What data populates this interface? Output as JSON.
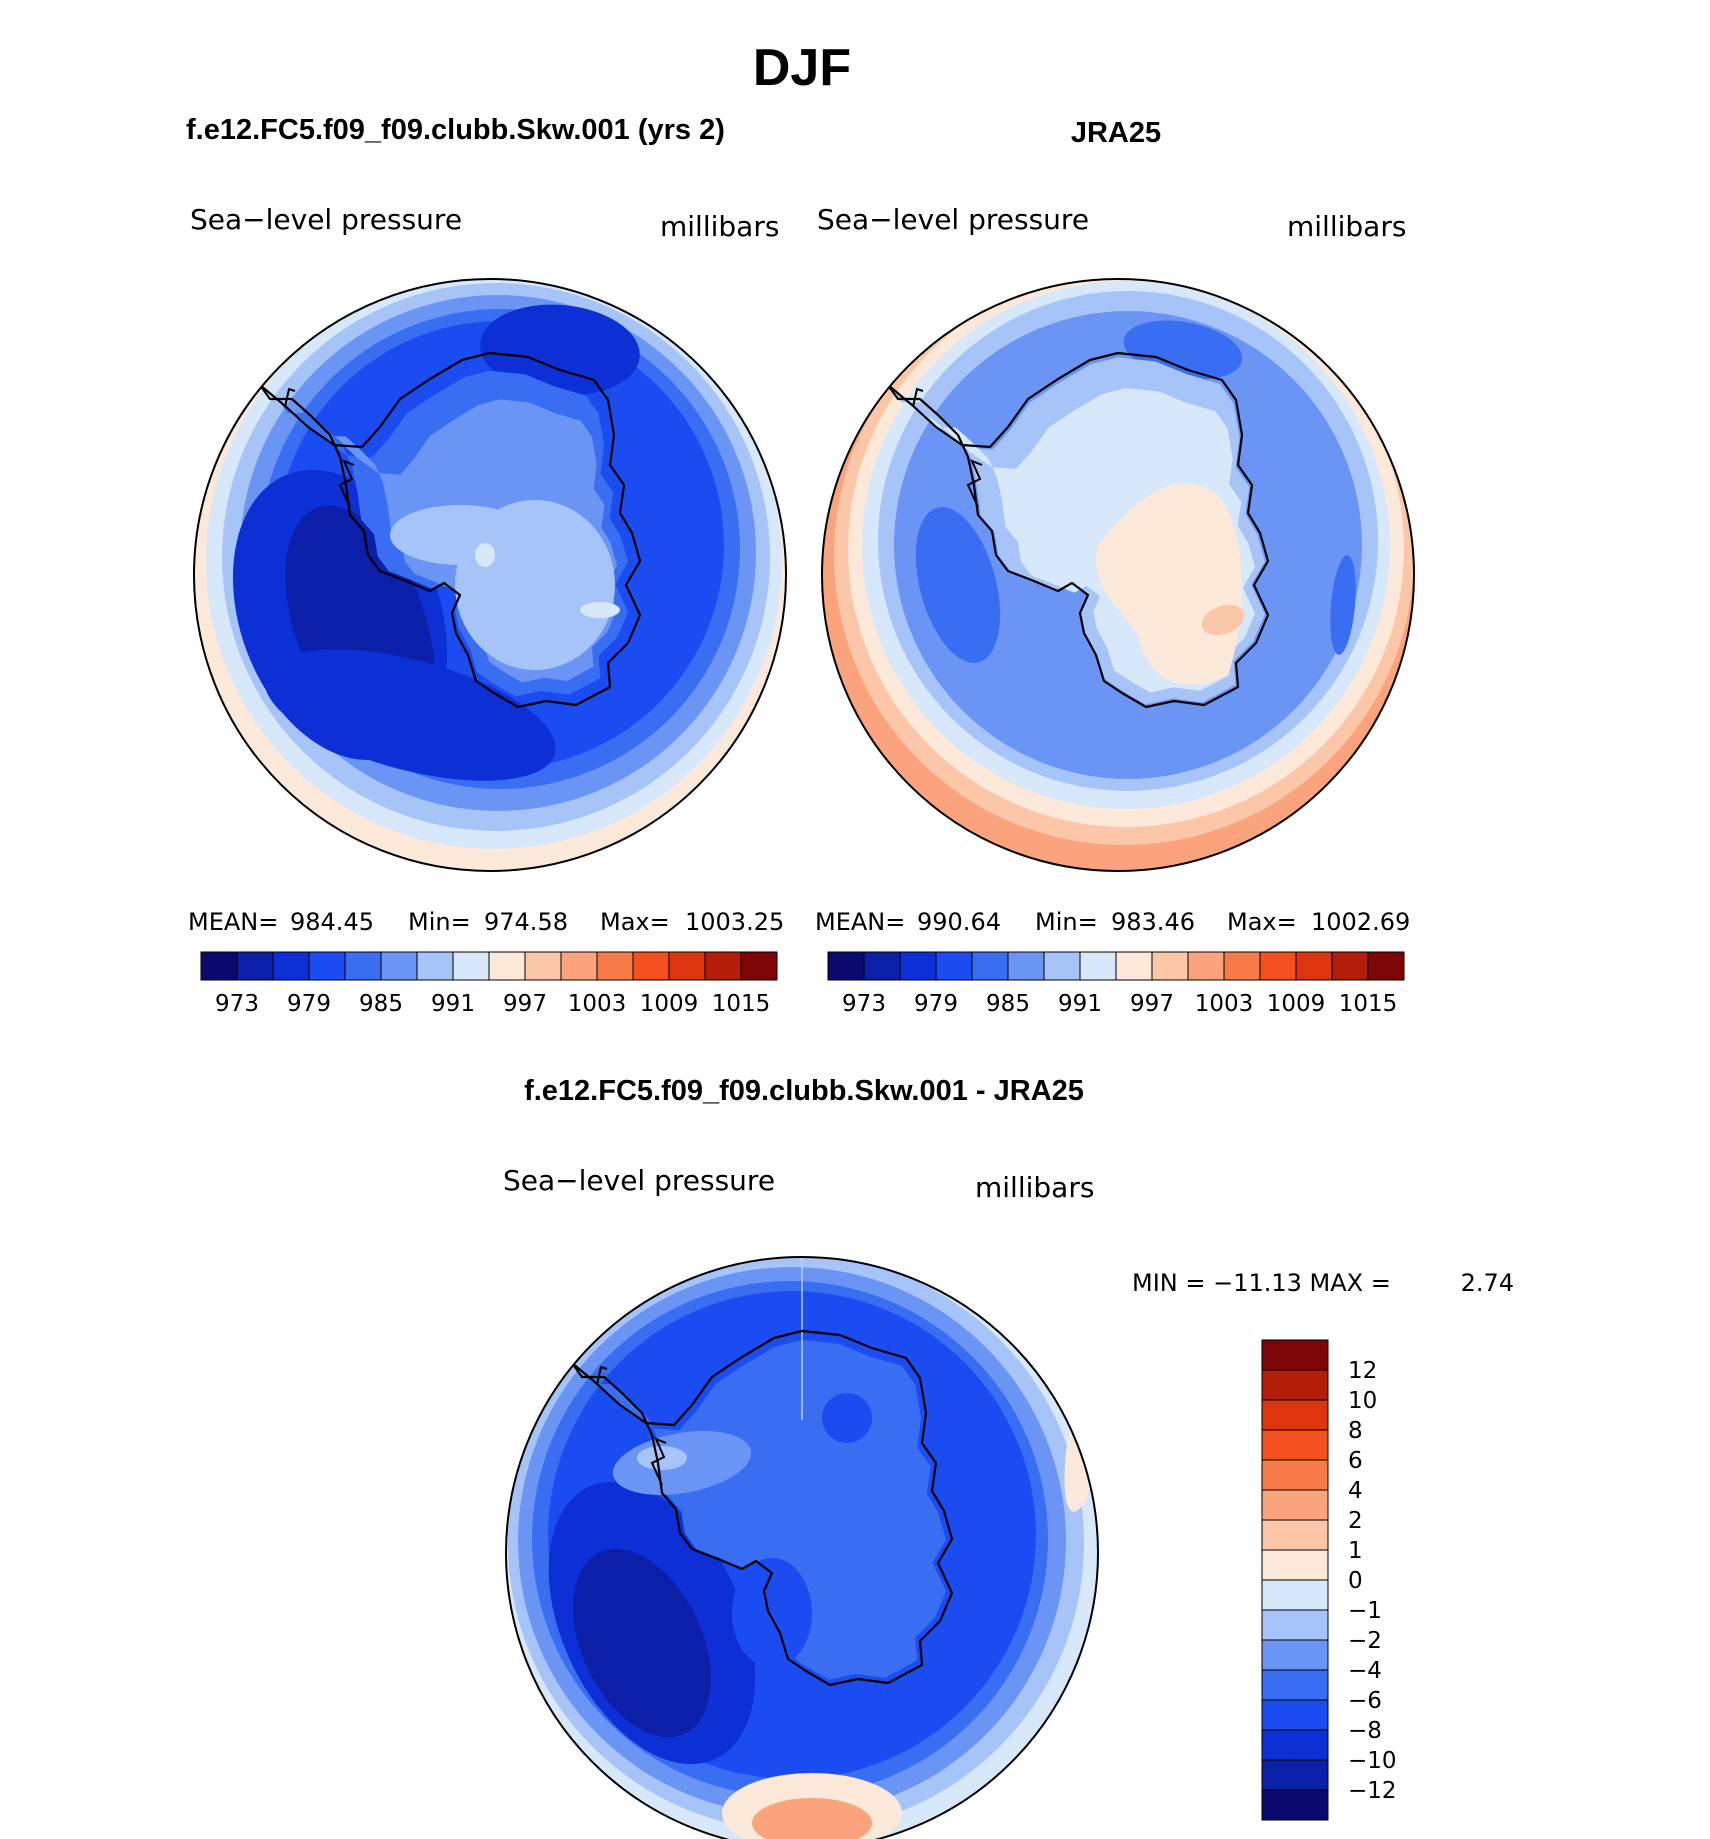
{
  "figure_title": "DJF",
  "palette": [
    "#0a0a6e",
    "#0c1fa8",
    "#0d2fd6",
    "#1a4cf2",
    "#3a6ef2",
    "#6a95f5",
    "#a7c4f8",
    "#d8e8fb",
    "#fde9da",
    "#fcc7a8",
    "#fba37d",
    "#f87b4a",
    "#f4501f",
    "#dc3510",
    "#b21e0a",
    "#7d0505"
  ],
  "coast_color": "#000000",
  "panels": {
    "model": {
      "header": "f.e12.FC5.f09_f09.clubb.Skw.001 (yrs 2)",
      "field_label": "Sea−level pressure",
      "units": "millibars",
      "stats": {
        "mean_label": "MEAN=",
        "mean": "984.45",
        "min_label": "Min=",
        "min": "974.58",
        "max_label": "Max=",
        "max": "1003.25"
      },
      "colorbar_ticks": [
        "973",
        "979",
        "985",
        "991",
        "997",
        "1003",
        "1009",
        "1015"
      ]
    },
    "obs": {
      "header": "JRA25",
      "field_label": "Sea−level pressure",
      "units": "millibars",
      "stats": {
        "mean_label": "MEAN=",
        "mean": "990.64",
        "min_label": "Min=",
        "min": "983.46",
        "max_label": "Max=",
        "max": "1002.69"
      },
      "colorbar_ticks": [
        "973",
        "979",
        "985",
        "991",
        "997",
        "1003",
        "1009",
        "1015"
      ]
    },
    "diff": {
      "header": "f.e12.FC5.f09_f09.clubb.Skw.001 - JRA25",
      "field_label": "Sea−level pressure",
      "units": "millibars",
      "min_max_text": "MIN = −11.13 MAX =",
      "max_value": "2.74",
      "colorbar_ticks": [
        "12",
        "10",
        "8",
        "6",
        "4",
        "2",
        "1",
        "0",
        "−1",
        "−2",
        "−4",
        "−6",
        "−8",
        "−10",
        "−12"
      ]
    }
  }
}
